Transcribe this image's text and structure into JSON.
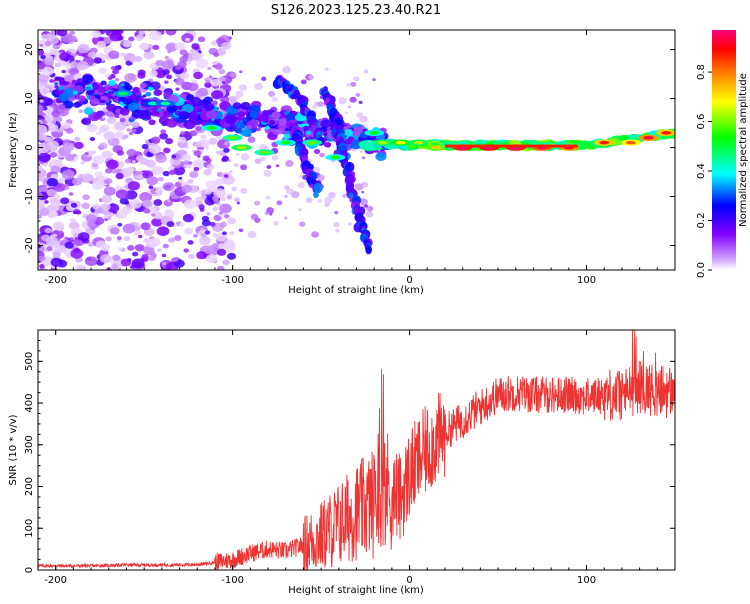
{
  "figure": {
    "title": "S126.2023.125.23.40.R21"
  },
  "chart_data": [
    {
      "type": "heatmap",
      "xlabel": "Height of straight line (km)",
      "ylabel": "Frequency (Hz)",
      "xlim": [
        -210,
        150
      ],
      "ylim": [
        -25,
        24
      ],
      "xticks": [
        -200,
        -100,
        0,
        100
      ],
      "yticks": [
        -20,
        -10,
        0,
        10,
        20
      ],
      "colorbar": {
        "label": "Normalized spectral amplitude",
        "range": [
          0,
          0.97
        ],
        "ticks": [
          0,
          0.2,
          0.4,
          0.6,
          0.8
        ],
        "colors": [
          "#ffffff",
          "#8000ff",
          "#0000ff",
          "#00ffff",
          "#00ff00",
          "#ffff00",
          "#ff8000",
          "#ff0000",
          "#ff0080"
        ]
      },
      "blobs": [
        {
          "x": -162,
          "y": 11,
          "a": 0.35
        },
        {
          "x": -145,
          "y": 9,
          "a": 0.3
        },
        {
          "x": -138,
          "y": 9,
          "a": 0.32
        },
        {
          "x": -112,
          "y": 4,
          "a": 0.4
        },
        {
          "x": -100,
          "y": 2,
          "a": 0.45
        },
        {
          "x": -95,
          "y": 0,
          "a": 0.5
        },
        {
          "x": -82,
          "y": -1,
          "a": 0.45
        },
        {
          "x": -70,
          "y": 1,
          "a": 0.4
        },
        {
          "x": -55,
          "y": 1,
          "a": 0.45
        },
        {
          "x": -42,
          "y": -2,
          "a": 0.4
        },
        {
          "x": -20,
          "y": 3,
          "a": 0.4
        },
        {
          "x": -15,
          "y": 1,
          "a": 0.5
        },
        {
          "x": -5,
          "y": 1,
          "a": 0.55
        },
        {
          "x": 5,
          "y": 1,
          "a": 0.5
        },
        {
          "x": 15,
          "y": 0,
          "a": 0.6
        },
        {
          "x": 30,
          "y": 0,
          "a": 0.9
        },
        {
          "x": 45,
          "y": 0,
          "a": 0.92
        },
        {
          "x": 60,
          "y": 0,
          "a": 0.95
        },
        {
          "x": 75,
          "y": 0,
          "a": 0.85
        },
        {
          "x": 90,
          "y": 0,
          "a": 0.8
        },
        {
          "x": 110,
          "y": 1,
          "a": 0.75
        },
        {
          "x": 125,
          "y": 1,
          "a": 0.7
        },
        {
          "x": 135,
          "y": 2,
          "a": 0.8
        },
        {
          "x": 145,
          "y": 3,
          "a": 0.75
        }
      ],
      "curves": [
        {
          "name": "branch-1",
          "points": [
            [
              -75,
              14
            ],
            [
              -65,
              11
            ],
            [
              -57,
              7
            ],
            [
              -50,
              1
            ]
          ]
        },
        {
          "name": "branch-2",
          "points": [
            [
              -48,
              12
            ],
            [
              -42,
              6
            ],
            [
              -38,
              0
            ],
            [
              -33,
              -8
            ],
            [
              -28,
              -15
            ],
            [
              -23,
              -21
            ]
          ]
        },
        {
          "name": "branch-3",
          "points": [
            [
              -68,
              6
            ],
            [
              -62,
              1
            ],
            [
              -58,
              -4
            ],
            [
              -52,
              -9
            ]
          ]
        }
      ]
    },
    {
      "type": "line",
      "xlabel": "Height of straight line (km)",
      "ylabel": "SNR (10 * v/v)",
      "xlim": [
        -210,
        150
      ],
      "ylim": [
        0,
        575
      ],
      "xticks": [
        -200,
        -100,
        0,
        100
      ],
      "yticks": [
        0,
        100,
        200,
        300,
        400,
        500
      ],
      "series": [
        {
          "color": "#ee3333",
          "x": [
            -210,
            -200,
            -180,
            -160,
            -140,
            -120,
            -110,
            -100,
            -90,
            -80,
            -70,
            -60,
            -50,
            -40,
            -30,
            -20,
            -15,
            -10,
            -5,
            0,
            10,
            20,
            30,
            40,
            50,
            60,
            70,
            80,
            90,
            100,
            110,
            120,
            130,
            140,
            150
          ],
          "y": [
            10,
            10,
            10,
            12,
            12,
            13,
            18,
            25,
            40,
            50,
            45,
            60,
            80,
            110,
            140,
            160,
            200,
            190,
            170,
            230,
            290,
            330,
            360,
            390,
            420,
            425,
            420,
            420,
            420,
            415,
            420,
            420,
            440,
            430,
            425
          ]
        }
      ]
    }
  ]
}
